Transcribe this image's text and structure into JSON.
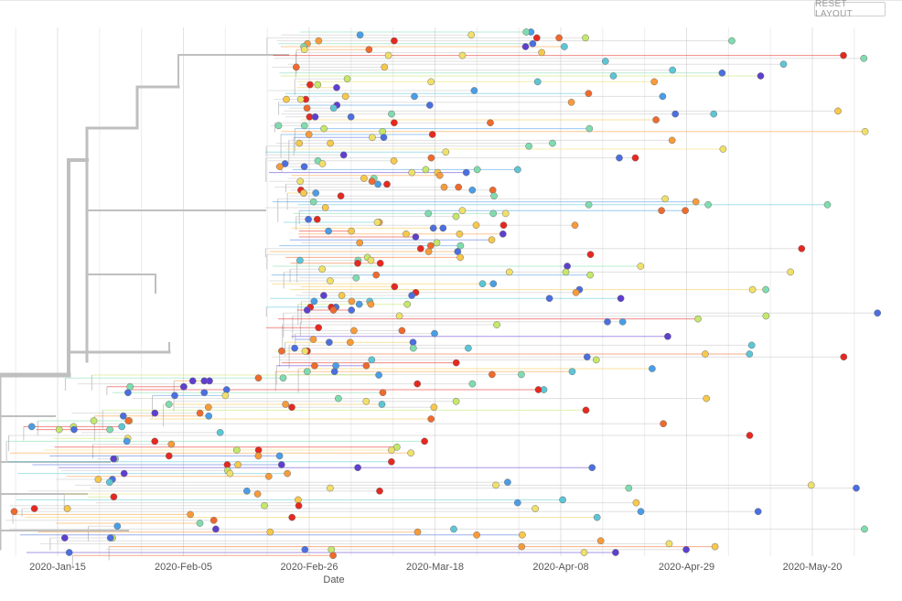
{
  "controls": {
    "reset_label": "RESET LAYOUT"
  },
  "chart_data": {
    "type": "scatter",
    "xlabel": "Date",
    "ylabel": "",
    "title": "",
    "x_ticks": [
      "2020-Jan-15",
      "2020-Feb-05",
      "2020-Feb-26",
      "2020-Mar-18",
      "2020-Apr-08",
      "2020-Apr-29",
      "2020-May-20"
    ],
    "xlim": [
      "2020-Jan-01",
      "2020-Jun-01"
    ],
    "grid": true,
    "tree_branch_color": "#bdbdbd",
    "tip_palette": [
      "#5e3fd0",
      "#4b6fe0",
      "#4a9de6",
      "#5cc6d6",
      "#7fdcae",
      "#c4e86a",
      "#f0e06a",
      "#f7c84a",
      "#f79b3a",
      "#ef6a2c",
      "#e7281f"
    ],
    "series": [
      {
        "tips_in_band": "top",
        "dates": [
          "2020-Mar-01",
          "2020-Mar-10",
          "2020-Mar-15",
          "2020-Mar-22",
          "2020-Mar-28",
          "2020-Apr-02",
          "2020-Apr-10",
          "2020-Apr-18",
          "2020-Apr-25",
          "2020-May-05",
          "2020-May-12"
        ]
      },
      {
        "tips_in_band": "middle",
        "dates": [
          "2020-Mar-05",
          "2020-Mar-12",
          "2020-Mar-18",
          "2020-Mar-24",
          "2020-Mar-30",
          "2020-Apr-06",
          "2020-Apr-14",
          "2020-Apr-22",
          "2020-May-01",
          "2020-May-10",
          "2020-May-20",
          "2020-May-28"
        ]
      },
      {
        "tips_in_band": "bottom",
        "dates": [
          "2020-Jan-20",
          "2020-Jan-28",
          "2020-Feb-05",
          "2020-Feb-12",
          "2020-Feb-20",
          "2020-Feb-26",
          "2020-Mar-05",
          "2020-Mar-12",
          "2020-Mar-20",
          "2020-Mar-28",
          "2020-Apr-08",
          "2020-Apr-20",
          "2020-May-05"
        ]
      }
    ]
  }
}
